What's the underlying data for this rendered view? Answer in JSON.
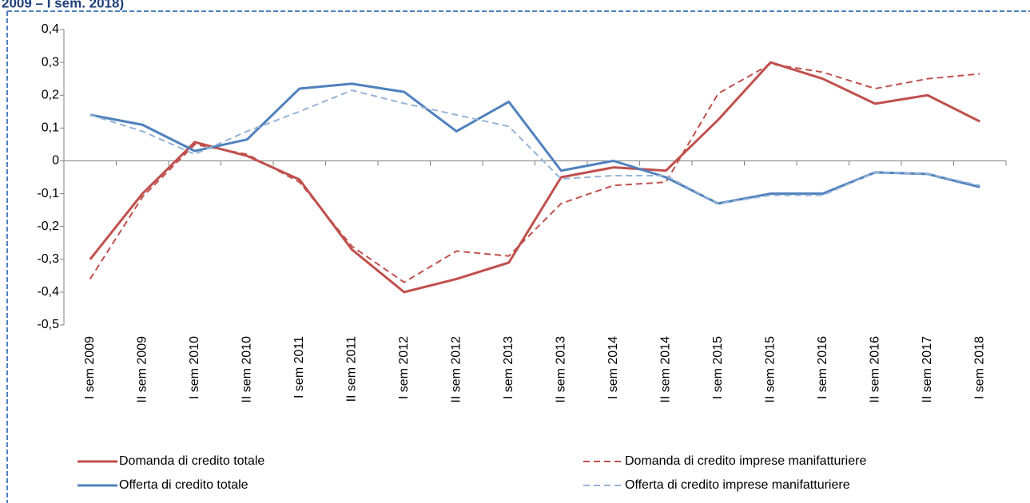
{
  "chart_data": {
    "type": "line",
    "title": "2009 – I sem. 2018)",
    "categories": [
      "I sem 2009",
      "II sem 2009",
      "I sem 2010",
      "II sem 2010",
      "I sem 2011",
      "II sem 2011",
      "I sem 2012",
      "II sem 2012",
      "I sem 2013",
      "II sem 2013",
      "I sem 2014",
      "II sem 2014",
      "I sem 2015",
      "II sem 2015",
      "I sem 2016",
      "II sem 2016",
      "II sem 2017",
      "I sem 2018"
    ],
    "ylim": [
      -0.5,
      0.4
    ],
    "yticks": [
      {
        "value": -0.5,
        "label": "-0,5"
      },
      {
        "value": -0.4,
        "label": "-0,4"
      },
      {
        "value": -0.3,
        "label": "-0,3"
      },
      {
        "value": -0.2,
        "label": "-0,2"
      },
      {
        "value": -0.1,
        "label": "-0,1"
      },
      0,
      {
        "value": 0.1,
        "label": "0,1"
      },
      {
        "value": 0.2,
        "label": "0,2"
      },
      {
        "value": 0.3,
        "label": "0,3"
      },
      {
        "value": 0.4,
        "label": "0,4"
      }
    ],
    "series": [
      {
        "name": "Domanda di credito totale",
        "color": "#c0504d",
        "dashed": false,
        "values": [
          -0.3,
          -0.1,
          0.057,
          0.015,
          -0.057,
          -0.27,
          -0.4,
          -0.36,
          -0.31,
          -0.05,
          -0.02,
          -0.03,
          0.125,
          0.3,
          0.25,
          0.174,
          0.2,
          0.12
        ]
      },
      {
        "name": "Domanda di credito imprese manifatturiere",
        "color": "#c0504d",
        "dashed": true,
        "values": [
          -0.36,
          -0.11,
          0.05,
          0.02,
          -0.065,
          -0.26,
          -0.37,
          -0.275,
          -0.29,
          -0.13,
          -0.075,
          -0.065,
          0.205,
          0.295,
          0.27,
          0.22,
          0.25,
          0.265
        ]
      },
      {
        "name": "Offerta di credito totale",
        "color": "#4f81bd",
        "dashed": false,
        "values": [
          0.14,
          0.11,
          0.03,
          0.065,
          0.22,
          0.235,
          0.21,
          0.09,
          0.18,
          -0.03,
          0,
          -0.05,
          -0.13,
          -0.1,
          -0.1,
          -0.035,
          -0.04,
          -0.08
        ]
      },
      {
        "name": "Offerta di credito imprese manifatturiere",
        "color": "#95b3d7",
        "dashed": true,
        "values": [
          0.14,
          0.09,
          0.02,
          0.09,
          0.15,
          0.215,
          0.175,
          0.14,
          0.105,
          -0.055,
          -0.045,
          -0.045,
          -0.13,
          -0.105,
          -0.105,
          -0.035,
          -0.04,
          -0.075
        ]
      }
    ]
  }
}
